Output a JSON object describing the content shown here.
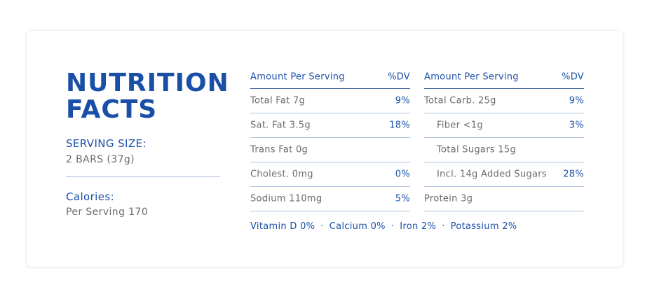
{
  "title": {
    "line1": "NUTRITION",
    "line2": "FACTS"
  },
  "serving": {
    "label": "SERVING SIZE:",
    "value": "2 BARS (37g)"
  },
  "calories": {
    "label": "Calories:",
    "value": "Per Serving 170"
  },
  "table_left": {
    "header": {
      "label": "Amount Per Serving",
      "dv": "%DV"
    },
    "rows": [
      {
        "label": "Total Fat 7g",
        "dv": "9%"
      },
      {
        "label": "Sat. Fat 3.5g",
        "dv": "18%"
      },
      {
        "label": "Trans Fat 0g",
        "dv": ""
      },
      {
        "label": "Cholest. 0mg",
        "dv": "0%"
      },
      {
        "label": "Sodium 110mg",
        "dv": "5%"
      }
    ]
  },
  "table_right": {
    "header": {
      "label": "Amount Per Serving",
      "dv": "%DV"
    },
    "rows": [
      {
        "label": "Total Carb. 25g",
        "dv": "9%"
      },
      {
        "label": "Fiber <1g",
        "dv": "3%"
      },
      {
        "label": "Total Sugars 15g",
        "dv": ""
      },
      {
        "label": "Incl. 14g Added Sugars",
        "dv": "28%"
      },
      {
        "label": "Protein 3g",
        "dv": ""
      }
    ]
  },
  "vitamins": [
    "Vitamin D 0%",
    "Calcium 0%",
    "Iron 2%",
    "Potassium 2%"
  ],
  "vitamin_separator": "·",
  "colors": {
    "accent": "#1a4fa8",
    "text": "#6b6b6b",
    "rule": "#a9bfdf"
  }
}
